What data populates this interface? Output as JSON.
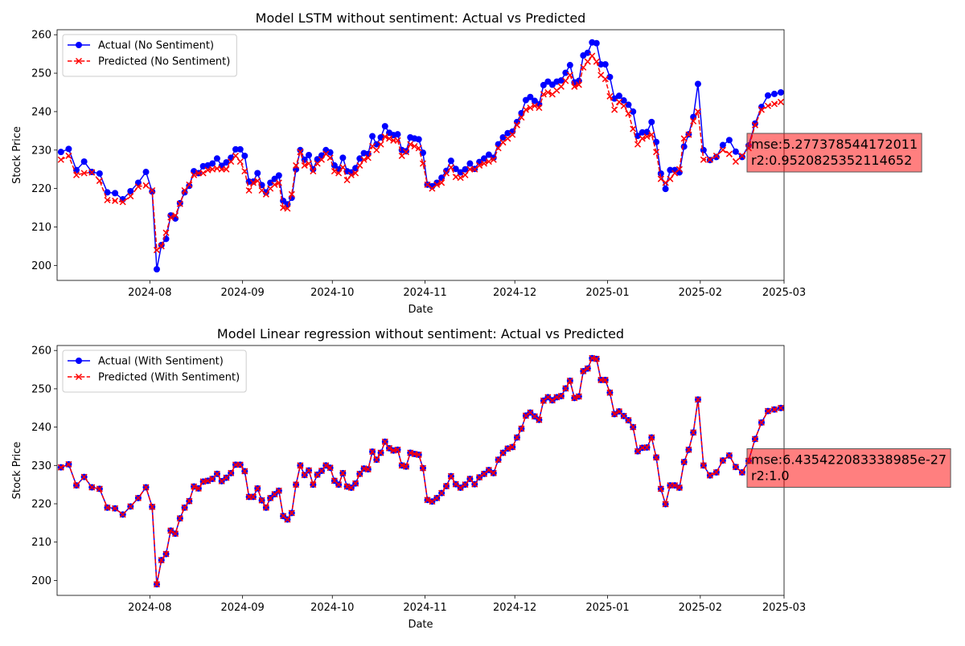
{
  "chart_data": [
    {
      "type": "line",
      "title": "Model LSTM without  sentiment: Actual vs Predicted",
      "x_label": "Date",
      "y_label": "Stock Price",
      "x": [
        "2024-07",
        "2024-07",
        "2024-07",
        "2024-07",
        "2024-07",
        "2024-07",
        "2024-07",
        "2024-07",
        "2024-07",
        "2024-07",
        "2024-07",
        "2024-07",
        "2024-08",
        "2024-08",
        "2024-08",
        "2024-08",
        "2024-08",
        "2024-08",
        "2024-08",
        "2024-08",
        "2024-08",
        "2024-08",
        "2024-08",
        "2024-08",
        "2024-08",
        "2024-08",
        "2024-08",
        "2024-08",
        "2024-08",
        "2024-08",
        "2024-08",
        "2024-08",
        "2024-09",
        "2024-09",
        "2024-09",
        "2024-09",
        "2024-09",
        "2024-09",
        "2024-09",
        "2024-09",
        "2024-09",
        "2024-09",
        "2024-09",
        "2024-09",
        "2024-09",
        "2024-09",
        "2024-09",
        "2024-09",
        "2024-09",
        "2024-09",
        "2024-09",
        "2024-09",
        "2024-09",
        "2024-10",
        "2024-10",
        "2024-10",
        "2024-10",
        "2024-10",
        "2024-10",
        "2024-10",
        "2024-10",
        "2024-10",
        "2024-10",
        "2024-10",
        "2024-10",
        "2024-10",
        "2024-10",
        "2024-10",
        "2024-10",
        "2024-10",
        "2024-10",
        "2024-10",
        "2024-10",
        "2024-10",
        "2024-10",
        "2024-11",
        "2024-11",
        "2024-11",
        "2024-11",
        "2024-11",
        "2024-11",
        "2024-11",
        "2024-11",
        "2024-11",
        "2024-11",
        "2024-11",
        "2024-11",
        "2024-11",
        "2024-11",
        "2024-11",
        "2024-11",
        "2024-11",
        "2024-11",
        "2024-11",
        "2024-12",
        "2024-12",
        "2024-12",
        "2024-12",
        "2024-12",
        "2024-12",
        "2024-12",
        "2024-12",
        "2024-12",
        "2024-12",
        "2024-12",
        "2024-12",
        "2024-12",
        "2024-12",
        "2024-12",
        "2024-12",
        "2024-12",
        "2024-12",
        "2024-12",
        "2024-12",
        "2024-12",
        "2025-01",
        "2025-01",
        "2025-01",
        "2025-01",
        "2025-01",
        "2025-01",
        "2025-01",
        "2025-01",
        "2025-01",
        "2025-01",
        "2025-01",
        "2025-01",
        "2025-01",
        "2025-01",
        "2025-01",
        "2025-01",
        "2025-01",
        "2025-01",
        "2025-01",
        "2025-01",
        "2025-02",
        "2025-02",
        "2025-02",
        "2025-02",
        "2025-02",
        "2025-02",
        "2025-02",
        "2025-02",
        "2025-02",
        "2025-02",
        "2025-02",
        "2025-02",
        "2025-02"
      ],
      "series": [
        {
          "name": "Actual (No Sentiment)",
          "color": "#0000ff",
          "marker": "o",
          "linestyle": "solid",
          "values": [
            229.5,
            230.3,
            224.8,
            227.0,
            224.3,
            223.9,
            219.0,
            218.8,
            217.2,
            219.3,
            221.5,
            224.3,
            219.2,
            199.0,
            205.3,
            206.9,
            213.0,
            212.2,
            216.2,
            219.0,
            220.7,
            224.5,
            224.0,
            225.8,
            226.0,
            226.5,
            227.8,
            225.9,
            226.8,
            228.0,
            230.2,
            230.2,
            228.5,
            221.8,
            221.8,
            224.0,
            220.9,
            219.0,
            221.5,
            222.5,
            223.4,
            216.8,
            215.9,
            217.6,
            225.0,
            230.0,
            227.5,
            228.7,
            225.0,
            227.6,
            228.6,
            230.0,
            229.4,
            226.0,
            225.0,
            228.0,
            224.5,
            224.2,
            225.3,
            227.8,
            229.2,
            229.0,
            233.6,
            231.5,
            233.3,
            236.2,
            234.5,
            233.9,
            234.1,
            230.0,
            229.7,
            233.3,
            233.0,
            232.8,
            229.3,
            221.0,
            220.6,
            221.5,
            222.8,
            224.6,
            227.2,
            225.1,
            224.2,
            225.0,
            226.5,
            225.1,
            226.9,
            227.8,
            228.8,
            228.0,
            231.5,
            233.3,
            234.4,
            234.8,
            237.3,
            239.6,
            243.0,
            243.8,
            242.8,
            241.9,
            246.9,
            247.8,
            247.0,
            247.8,
            248.1,
            250.1,
            252.1,
            247.6,
            248.0,
            254.6,
            255.3,
            258.0,
            257.8,
            252.3,
            252.3,
            249.0,
            243.4,
            244.1,
            242.9,
            241.8,
            240.0,
            233.7,
            234.6,
            234.7,
            237.3,
            232.1,
            223.9,
            219.9,
            224.8,
            224.8,
            224.2,
            230.9,
            234.1,
            238.6,
            247.2,
            230.0,
            227.4,
            228.2,
            231.3,
            232.6,
            229.6,
            228.2,
            231.2,
            236.9,
            241.2,
            244.2,
            244.6,
            245.0
          ]
        },
        {
          "name": "Predicted (No Sentiment)",
          "color": "#ff0000",
          "marker": "x",
          "linestyle": "dashed",
          "values": [
            227.5,
            228.5,
            223.5,
            224.0,
            224.2,
            222.0,
            217.0,
            216.8,
            216.5,
            218.0,
            220.5,
            220.8,
            219.5,
            204.0,
            205.0,
            208.5,
            212.5,
            213.0,
            216.0,
            219.5,
            221.0,
            223.5,
            224.0,
            224.0,
            224.8,
            225.0,
            225.2,
            225.0,
            225.0,
            227.0,
            228.5,
            227.0,
            224.5,
            219.5,
            221.5,
            222.0,
            219.5,
            218.5,
            220.0,
            221.0,
            221.5,
            215.0,
            214.8,
            218.5,
            226.0,
            229.5,
            226.0,
            226.5,
            224.5,
            226.5,
            227.5,
            229.0,
            228.0,
            224.5,
            224.0,
            225.5,
            222.2,
            223.5,
            224.0,
            226.0,
            227.5,
            228.0,
            231.0,
            230.0,
            231.5,
            233.5,
            233.0,
            232.5,
            232.5,
            228.5,
            229.5,
            231.5,
            231.0,
            230.5,
            226.5,
            221.0,
            220.0,
            221.0,
            221.5,
            224.0,
            225.5,
            223.0,
            222.8,
            223.5,
            225.0,
            225.0,
            226.0,
            226.5,
            227.0,
            227.5,
            230.5,
            232.0,
            233.0,
            234.0,
            236.5,
            238.5,
            240.5,
            241.0,
            241.5,
            241.0,
            244.5,
            245.0,
            244.5,
            245.5,
            246.5,
            248.0,
            249.5,
            246.5,
            247.0,
            251.5,
            253.0,
            254.5,
            253.0,
            249.5,
            248.5,
            244.0,
            240.5,
            242.5,
            241.5,
            239.5,
            235.5,
            231.5,
            233.0,
            233.5,
            234.0,
            229.5,
            222.5,
            221.5,
            222.5,
            224.0,
            225.0,
            233.0,
            234.0,
            237.5,
            240.0,
            227.5,
            227.5,
            228.5,
            230.0,
            229.0,
            227.0,
            228.5,
            230.5,
            236.5,
            240.5,
            241.5,
            242.0,
            242.5
          ]
        }
      ],
      "xlim": [
        "2024-07",
        "2025-03"
      ],
      "xticks": [
        "2024-08",
        "2024-09",
        "2024-10",
        "2024-11",
        "2024-12",
        "2025-01",
        "2025-02",
        "2025-03"
      ],
      "ylim": [
        196.1,
        261.3
      ],
      "yticks": [
        200,
        210,
        220,
        230,
        240,
        250,
        260
      ],
      "legend": "upper left",
      "annotation": [
        "mse:5.277378544172011",
        "r2:0.9520825352114652"
      ]
    },
    {
      "type": "line",
      "title": "Model Linear regression without  sentiment: Actual vs Predicted",
      "x_label": "Date",
      "y_label": "Stock Price",
      "x": [
        "2024-07",
        "2024-07",
        "2024-07",
        "2024-07",
        "2024-07",
        "2024-07",
        "2024-07",
        "2024-07",
        "2024-07",
        "2024-07",
        "2024-07",
        "2024-07",
        "2024-08",
        "2024-08",
        "2024-08",
        "2024-08",
        "2024-08",
        "2024-08",
        "2024-08",
        "2024-08",
        "2024-08",
        "2024-08",
        "2024-08",
        "2024-08",
        "2024-08",
        "2024-08",
        "2024-08",
        "2024-08",
        "2024-08",
        "2024-08",
        "2024-08",
        "2024-08",
        "2024-09",
        "2024-09",
        "2024-09",
        "2024-09",
        "2024-09",
        "2024-09",
        "2024-09",
        "2024-09",
        "2024-09",
        "2024-09",
        "2024-09",
        "2024-09",
        "2024-09",
        "2024-09",
        "2024-09",
        "2024-09",
        "2024-09",
        "2024-09",
        "2024-09",
        "2024-09",
        "2024-09",
        "2024-10",
        "2024-10",
        "2024-10",
        "2024-10",
        "2024-10",
        "2024-10",
        "2024-10",
        "2024-10",
        "2024-10",
        "2024-10",
        "2024-10",
        "2024-10",
        "2024-10",
        "2024-10",
        "2024-10",
        "2024-10",
        "2024-10",
        "2024-10",
        "2024-10",
        "2024-10",
        "2024-10",
        "2024-10",
        "2024-11",
        "2024-11",
        "2024-11",
        "2024-11",
        "2024-11",
        "2024-11",
        "2024-11",
        "2024-11",
        "2024-11",
        "2024-11",
        "2024-11",
        "2024-11",
        "2024-11",
        "2024-11",
        "2024-11",
        "2024-11",
        "2024-11",
        "2024-11",
        "2024-11",
        "2024-12",
        "2024-12",
        "2024-12",
        "2024-12",
        "2024-12",
        "2024-12",
        "2024-12",
        "2024-12",
        "2024-12",
        "2024-12",
        "2024-12",
        "2024-12",
        "2024-12",
        "2024-12",
        "2024-12",
        "2024-12",
        "2024-12",
        "2024-12",
        "2024-12",
        "2024-12",
        "2024-12",
        "2025-01",
        "2025-01",
        "2025-01",
        "2025-01",
        "2025-01",
        "2025-01",
        "2025-01",
        "2025-01",
        "2025-01",
        "2025-01",
        "2025-01",
        "2025-01",
        "2025-01",
        "2025-01",
        "2025-01",
        "2025-01",
        "2025-01",
        "2025-01",
        "2025-01",
        "2025-01",
        "2025-02",
        "2025-02",
        "2025-02",
        "2025-02",
        "2025-02",
        "2025-02",
        "2025-02",
        "2025-02",
        "2025-02",
        "2025-02",
        "2025-02",
        "2025-02",
        "2025-02"
      ],
      "series": [
        {
          "name": "Actual (With Sentiment)",
          "color": "#0000ff",
          "marker": "o",
          "linestyle": "solid",
          "values": [
            229.5,
            230.3,
            224.8,
            227.0,
            224.3,
            223.9,
            219.0,
            218.8,
            217.2,
            219.3,
            221.5,
            224.3,
            219.2,
            199.0,
            205.3,
            206.9,
            213.0,
            212.2,
            216.2,
            219.0,
            220.7,
            224.5,
            224.0,
            225.8,
            226.0,
            226.5,
            227.8,
            225.9,
            226.8,
            228.0,
            230.2,
            230.2,
            228.5,
            221.8,
            221.8,
            224.0,
            220.9,
            219.0,
            221.5,
            222.5,
            223.4,
            216.8,
            215.9,
            217.6,
            225.0,
            230.0,
            227.5,
            228.7,
            225.0,
            227.6,
            228.6,
            230.0,
            229.4,
            226.0,
            225.0,
            228.0,
            224.5,
            224.2,
            225.3,
            227.8,
            229.2,
            229.0,
            233.6,
            231.5,
            233.3,
            236.2,
            234.5,
            233.9,
            234.1,
            230.0,
            229.7,
            233.3,
            233.0,
            232.8,
            229.3,
            221.0,
            220.6,
            221.5,
            222.8,
            224.6,
            227.2,
            225.1,
            224.2,
            225.0,
            226.5,
            225.1,
            226.9,
            227.8,
            228.8,
            228.0,
            231.5,
            233.3,
            234.4,
            234.8,
            237.3,
            239.6,
            243.0,
            243.8,
            242.8,
            241.9,
            246.9,
            247.8,
            247.0,
            247.8,
            248.1,
            250.1,
            252.1,
            247.6,
            248.0,
            254.6,
            255.3,
            258.0,
            257.8,
            252.3,
            252.3,
            249.0,
            243.4,
            244.1,
            242.9,
            241.8,
            240.0,
            233.7,
            234.6,
            234.7,
            237.3,
            232.1,
            223.9,
            219.9,
            224.8,
            224.8,
            224.2,
            230.9,
            234.1,
            238.6,
            247.2,
            230.0,
            227.4,
            228.2,
            231.3,
            232.6,
            229.6,
            228.2,
            231.2,
            236.9,
            241.2,
            244.2,
            244.6,
            245.0
          ]
        },
        {
          "name": "Predicted (With Sentiment)",
          "color": "#ff0000",
          "marker": "x",
          "linestyle": "dashed",
          "values": [
            229.5,
            230.3,
            224.8,
            227.0,
            224.3,
            223.9,
            219.0,
            218.8,
            217.2,
            219.3,
            221.5,
            224.3,
            219.2,
            199.0,
            205.3,
            206.9,
            213.0,
            212.2,
            216.2,
            219.0,
            220.7,
            224.5,
            224.0,
            225.8,
            226.0,
            226.5,
            227.8,
            225.9,
            226.8,
            228.0,
            230.2,
            230.2,
            228.5,
            221.8,
            221.8,
            224.0,
            220.9,
            219.0,
            221.5,
            222.5,
            223.4,
            216.8,
            215.9,
            217.6,
            225.0,
            230.0,
            227.5,
            228.7,
            225.0,
            227.6,
            228.6,
            230.0,
            229.4,
            226.0,
            225.0,
            228.0,
            224.5,
            224.2,
            225.3,
            227.8,
            229.2,
            229.0,
            233.6,
            231.5,
            233.3,
            236.2,
            234.5,
            233.9,
            234.1,
            230.0,
            229.7,
            233.3,
            233.0,
            232.8,
            229.3,
            221.0,
            220.6,
            221.5,
            222.8,
            224.6,
            227.2,
            225.1,
            224.2,
            225.0,
            226.5,
            225.1,
            226.9,
            227.8,
            228.8,
            228.0,
            231.5,
            233.3,
            234.4,
            234.8,
            237.3,
            239.6,
            243.0,
            243.8,
            242.8,
            241.9,
            246.9,
            247.8,
            247.0,
            247.8,
            248.1,
            250.1,
            252.1,
            247.6,
            248.0,
            254.6,
            255.3,
            258.0,
            257.8,
            252.3,
            252.3,
            249.0,
            243.4,
            244.1,
            242.9,
            241.8,
            240.0,
            233.7,
            234.6,
            234.7,
            237.3,
            232.1,
            223.9,
            219.9,
            224.8,
            224.8,
            224.2,
            230.9,
            234.1,
            238.6,
            247.2,
            230.0,
            227.4,
            228.2,
            231.3,
            232.6,
            229.6,
            228.2,
            231.2,
            236.9,
            241.2,
            244.2,
            244.6,
            245.0
          ]
        }
      ],
      "xlim": [
        "2024-07",
        "2025-03"
      ],
      "xticks": [
        "2024-08",
        "2024-09",
        "2024-10",
        "2024-11",
        "2024-12",
        "2025-01",
        "2025-02",
        "2025-03"
      ],
      "ylim": [
        196.1,
        261.3
      ],
      "yticks": [
        200,
        210,
        220,
        230,
        240,
        250,
        260
      ],
      "legend": "upper left",
      "annotation": [
        "mse:6.435422083338985e-27",
        "r2:1.0"
      ]
    }
  ]
}
